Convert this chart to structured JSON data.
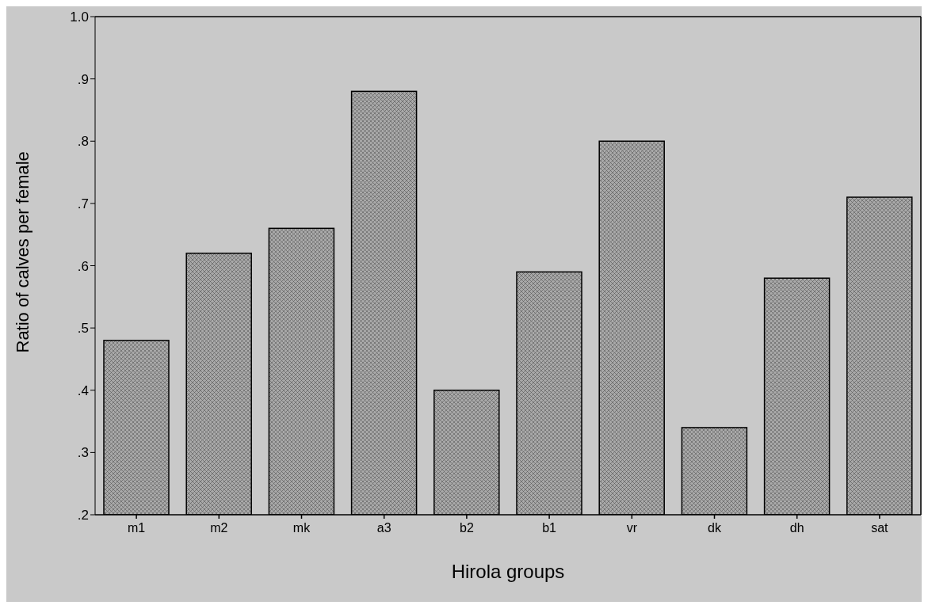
{
  "chart_data": {
    "type": "bar",
    "xlabel": "Hirola groups",
    "ylabel": "Ratio of calves per female",
    "categories": [
      "m1",
      "m2",
      "mk",
      "a3",
      "b2",
      "b1",
      "vr",
      "dk",
      "dh",
      "sat"
    ],
    "values": [
      0.48,
      0.62,
      0.66,
      0.88,
      0.4,
      0.59,
      0.8,
      0.34,
      0.58,
      0.71
    ],
    "color": "#a9a9a9",
    "ylim": [
      0.2,
      1.0
    ],
    "yticks": [
      {
        "value": 0.2,
        "label": ".2"
      },
      {
        "value": 0.3,
        "label": ".3"
      },
      {
        "value": 0.4,
        "label": ".4"
      },
      {
        "value": 0.5,
        "label": ".5"
      },
      {
        "value": 0.6,
        "label": ".6"
      },
      {
        "value": 0.7,
        "label": ".7"
      },
      {
        "value": 0.8,
        "label": ".8"
      },
      {
        "value": 0.9,
        "label": ".9"
      },
      {
        "value": 1.0,
        "label": "1.0"
      }
    ],
    "legend": false
  }
}
